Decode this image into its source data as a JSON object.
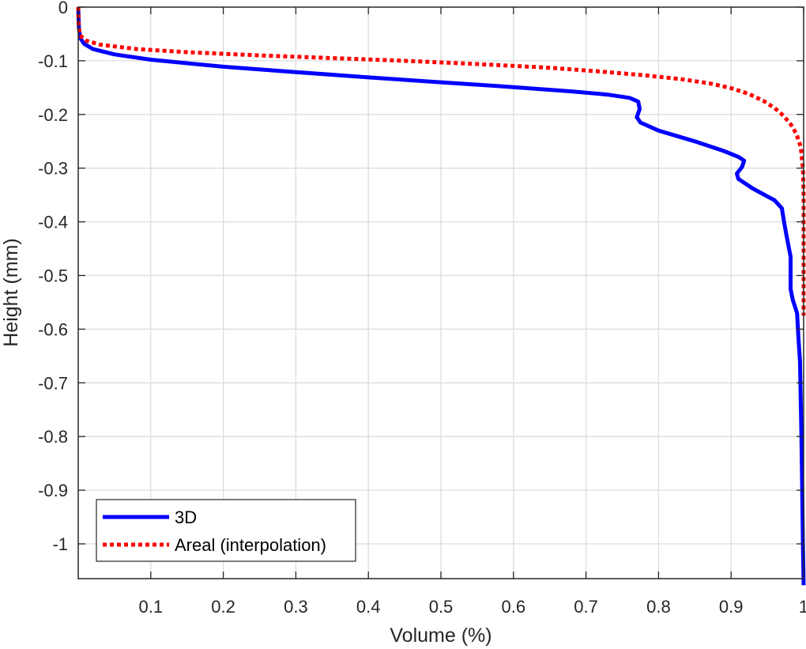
{
  "chart_data": {
    "type": "line",
    "title": "",
    "xlabel": "Volume (%)",
    "ylabel": "Height (mm)",
    "xlim": [
      0,
      1
    ],
    "ylim": [
      -1.077,
      0
    ],
    "grid": true,
    "legend_position": "lower-left",
    "x_ticks": [
      "0.1",
      "0.2",
      "0.3",
      "0.4",
      "0.5",
      "0.6",
      "0.7",
      "0.8",
      "0.9",
      "1"
    ],
    "x_tick_values": [
      0.1,
      0.2,
      0.3,
      0.4,
      0.5,
      0.6,
      0.7,
      0.8,
      0.9,
      1.0
    ],
    "y_ticks": [
      "0",
      "-0.1",
      "-0.2",
      "-0.3",
      "-0.4",
      "-0.5",
      "-0.6",
      "-0.7",
      "-0.8",
      "-0.9",
      "-1"
    ],
    "y_tick_values": [
      0,
      -0.1,
      -0.2,
      -0.3,
      -0.4,
      -0.5,
      -0.6,
      -0.7,
      -0.8,
      -0.9,
      -1.0
    ],
    "series": [
      {
        "name": "3D",
        "color": "#0000ff",
        "style": "solid",
        "x": [
          0,
          0.001,
          0.003,
          0.008,
          0.02,
          0.05,
          0.1,
          0.2,
          0.3,
          0.4,
          0.5,
          0.6,
          0.68,
          0.73,
          0.76,
          0.772,
          0.774,
          0.77,
          0.775,
          0.8,
          0.85,
          0.89,
          0.91,
          0.918,
          0.915,
          0.908,
          0.91,
          0.93,
          0.96,
          0.97,
          0.973,
          0.977,
          0.982,
          0.982,
          0.985,
          0.991,
          0.993,
          0.995,
          0.997,
          0.998,
          0.999,
          1.0
        ],
        "y": [
          0,
          -0.04,
          -0.058,
          -0.068,
          -0.078,
          -0.088,
          -0.098,
          -0.111,
          -0.121,
          -0.131,
          -0.14,
          -0.149,
          -0.157,
          -0.163,
          -0.169,
          -0.176,
          -0.19,
          -0.205,
          -0.215,
          -0.23,
          -0.25,
          -0.268,
          -0.279,
          -0.286,
          -0.298,
          -0.31,
          -0.32,
          -0.338,
          -0.36,
          -0.375,
          -0.4,
          -0.43,
          -0.465,
          -0.525,
          -0.545,
          -0.57,
          -0.62,
          -0.66,
          -0.8,
          -0.9,
          -1.0,
          -1.077
        ]
      },
      {
        "name": "Areal (interpolation)",
        "color": "#ff0000",
        "style": "dotted",
        "x": [
          0,
          0.0005,
          0.002,
          0.01,
          0.03,
          0.08,
          0.15,
          0.25,
          0.35,
          0.45,
          0.55,
          0.65,
          0.72,
          0.78,
          0.83,
          0.87,
          0.9,
          0.925,
          0.945,
          0.96,
          0.972,
          0.982,
          0.99,
          0.996,
          0.999,
          1.0,
          1.0,
          1.0
        ],
        "y": [
          0,
          -0.03,
          -0.052,
          -0.062,
          -0.07,
          -0.078,
          -0.084,
          -0.09,
          -0.095,
          -0.1,
          -0.106,
          -0.113,
          -0.12,
          -0.127,
          -0.134,
          -0.142,
          -0.151,
          -0.162,
          -0.175,
          -0.188,
          -0.202,
          -0.218,
          -0.236,
          -0.26,
          -0.3,
          -0.35,
          -0.5,
          -0.575
        ]
      }
    ]
  },
  "legend": {
    "items": [
      {
        "label": "3D",
        "color": "#0000ff",
        "style": "solid"
      },
      {
        "label": "Areal (interpolation)",
        "color": "#ff0000",
        "style": "dotted"
      }
    ]
  }
}
